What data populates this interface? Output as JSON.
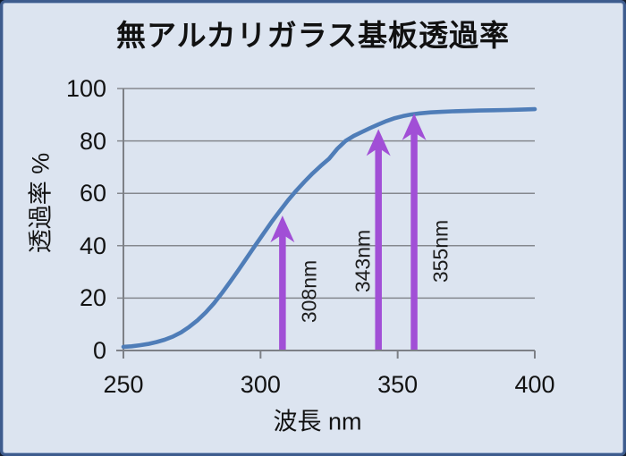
{
  "chart_data": {
    "type": "line",
    "title": "無アルカリガラス基板透過率",
    "xlabel": "波長 nm",
    "ylabel": "透過率 %",
    "xlim": [
      250,
      400
    ],
    "ylim": [
      0,
      100
    ],
    "xticks": [
      "250",
      "300",
      "350",
      "400"
    ],
    "yticks": [
      "0",
      "20",
      "40",
      "60",
      "80",
      "100"
    ],
    "grid": "horizontal",
    "legend": "none",
    "series": [
      {
        "name": "透過率",
        "color": "#4f7db8",
        "points": [
          [
            250,
            1.4
          ],
          [
            253,
            1.6
          ],
          [
            256,
            2.0
          ],
          [
            259,
            2.5
          ],
          [
            262,
            3.2
          ],
          [
            265,
            4.1
          ],
          [
            268,
            5.3
          ],
          [
            271,
            6.9
          ],
          [
            274,
            9.0
          ],
          [
            277,
            11.5
          ],
          [
            280,
            14.5
          ],
          [
            283,
            18.0
          ],
          [
            286,
            22.0
          ],
          [
            289,
            26.3
          ],
          [
            292,
            30.8
          ],
          [
            295,
            35.4
          ],
          [
            298,
            40.0
          ],
          [
            301,
            44.5
          ],
          [
            304,
            49.0
          ],
          [
            307,
            53.2
          ],
          [
            310,
            57.3
          ],
          [
            313,
            61.0
          ],
          [
            316,
            64.4
          ],
          [
            319,
            67.6
          ],
          [
            322,
            70.5
          ],
          [
            325,
            73.2
          ],
          [
            328,
            77.0
          ],
          [
            331,
            80.0
          ],
          [
            334,
            81.9
          ],
          [
            337,
            83.4
          ],
          [
            340,
            84.9
          ],
          [
            343,
            86.3
          ],
          [
            346,
            87.6
          ],
          [
            349,
            88.7
          ],
          [
            352,
            89.5
          ],
          [
            355,
            90.1
          ],
          [
            358,
            90.5
          ],
          [
            362,
            90.9
          ],
          [
            366,
            91.1
          ],
          [
            370,
            91.3
          ],
          [
            375,
            91.45
          ],
          [
            380,
            91.6
          ],
          [
            385,
            91.7
          ],
          [
            390,
            91.8
          ],
          [
            395,
            91.95
          ],
          [
            400,
            92.1
          ]
        ]
      }
    ],
    "annotations": [
      {
        "label": "308nm",
        "nm": 308,
        "arrow_top_pct": 51.5,
        "label_side": "right",
        "label_y_pct": 22.5
      },
      {
        "label": "343nm",
        "nm": 343,
        "arrow_top_pct": 84.5,
        "label_side": "left",
        "label_y_pct": 34
      },
      {
        "label": "355nm",
        "nm": 356,
        "arrow_top_pct": 90.5,
        "label_side": "right",
        "label_y_pct": 38
      }
    ],
    "arrow_color": "#a14fd6",
    "gridline_color": "#85888e",
    "axis_color": "#7d8086",
    "background_color": "#dce4f0"
  }
}
